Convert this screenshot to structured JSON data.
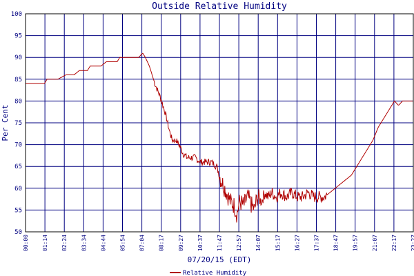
{
  "chart_data": {
    "type": "line",
    "title": "Outside Relative Humidity",
    "xlabel": "07/20/15 (EDT)",
    "ylabel": "Per Cent",
    "ylim": [
      50,
      100
    ],
    "xlim_minutes": [
      0,
      1440
    ],
    "y_ticks": [
      "50",
      "55",
      "60",
      "65",
      "70",
      "75",
      "80",
      "85",
      "90",
      "95",
      "100"
    ],
    "x_ticks": [
      "00:00",
      "01:14",
      "02:24",
      "03:34",
      "04:44",
      "05:54",
      "07:04",
      "08:17",
      "09:27",
      "10:37",
      "11:47",
      "12:57",
      "14:07",
      "15:17",
      "16:27",
      "17:37",
      "18:47",
      "19:57",
      "21:07",
      "22:17",
      "23:27"
    ],
    "grid": true,
    "legend_position": "bottom-center",
    "series": [
      {
        "name": "Relative Humidity",
        "color": "#b00000",
        "points": [
          [
            "00:00",
            84
          ],
          [
            "01:10",
            84
          ],
          [
            "01:20",
            85
          ],
          [
            "02:00",
            85
          ],
          [
            "02:30",
            86
          ],
          [
            "03:00",
            86
          ],
          [
            "03:20",
            87
          ],
          [
            "03:50",
            87
          ],
          [
            "04:00",
            88
          ],
          [
            "04:40",
            88
          ],
          [
            "05:00",
            89
          ],
          [
            "05:40",
            89
          ],
          [
            "05:50",
            90
          ],
          [
            "07:00",
            90
          ],
          [
            "07:15",
            91
          ],
          [
            "07:25",
            90
          ],
          [
            "07:40",
            88
          ],
          [
            "08:00",
            84
          ],
          [
            "08:20",
            81
          ],
          [
            "08:40",
            77
          ],
          [
            "08:55",
            73
          ],
          [
            "09:05",
            71
          ],
          [
            "09:20",
            71
          ],
          [
            "09:30",
            70
          ],
          [
            "09:45",
            68
          ],
          [
            "10:00",
            67
          ],
          [
            "10:30",
            67
          ],
          [
            "10:50",
            66
          ],
          [
            "11:30",
            66
          ],
          [
            "11:50",
            65
          ],
          [
            "12:05",
            62
          ],
          [
            "12:20",
            60
          ],
          [
            "12:40",
            57
          ],
          [
            "12:55",
            56
          ],
          [
            "13:05",
            54
          ],
          [
            "13:15",
            57
          ],
          [
            "13:30",
            56
          ],
          [
            "13:45",
            58
          ],
          [
            "14:00",
            56
          ],
          [
            "14:10",
            55
          ],
          [
            "14:20",
            58
          ],
          [
            "14:35",
            57
          ],
          [
            "14:50",
            59
          ],
          [
            "15:00",
            58
          ],
          [
            "15:15",
            59
          ],
          [
            "15:30",
            58
          ],
          [
            "15:50",
            59
          ],
          [
            "16:10",
            58
          ],
          [
            "16:30",
            59
          ],
          [
            "16:50",
            58
          ],
          [
            "17:10",
            58
          ],
          [
            "17:30",
            59
          ],
          [
            "17:50",
            58
          ],
          [
            "18:10",
            58
          ],
          [
            "18:30",
            58
          ],
          [
            "18:50",
            59
          ],
          [
            "19:10",
            60
          ],
          [
            "19:30",
            61
          ],
          [
            "19:50",
            62
          ],
          [
            "20:10",
            63
          ],
          [
            "20:30",
            65
          ],
          [
            "20:50",
            67
          ],
          [
            "21:10",
            69
          ],
          [
            "21:30",
            71
          ],
          [
            "21:50",
            74
          ],
          [
            "22:10",
            76
          ],
          [
            "22:30",
            78
          ],
          [
            "22:50",
            80
          ],
          [
            "23:05",
            79
          ],
          [
            "23:20",
            80
          ],
          [
            "23:35",
            80
          ],
          [
            "23:58",
            80
          ]
        ]
      }
    ],
    "noise_windows": [
      [
        "12:00",
        "14:30",
        2.2
      ],
      [
        "14:30",
        "18:40",
        1.4
      ],
      [
        "07:55",
        "09:30",
        0.7
      ],
      [
        "09:30",
        "12:00",
        0.8
      ]
    ]
  }
}
